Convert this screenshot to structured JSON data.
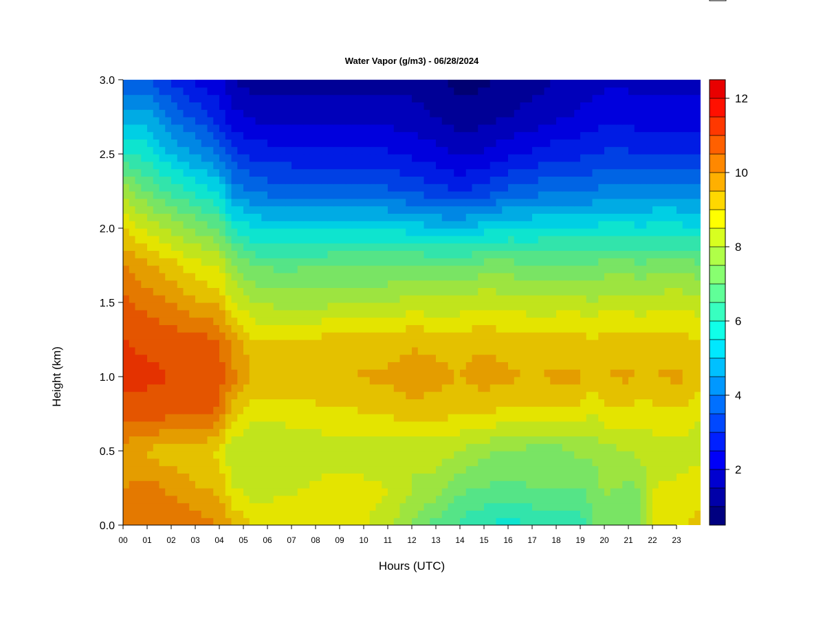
{
  "chart_data": {
    "type": "heatmap",
    "title": "Water Vapor (g/m3) - 06/28/2024",
    "xlabel": "Hours (UTC)",
    "ylabel": "Height (km)",
    "x_ticks": [
      "00",
      "01",
      "02",
      "03",
      "04",
      "05",
      "06",
      "07",
      "08",
      "09",
      "10",
      "11",
      "12",
      "13",
      "14",
      "15",
      "16",
      "17",
      "18",
      "19",
      "20",
      "21",
      "22",
      "23"
    ],
    "y_ticks": [
      "0.0",
      "0.5",
      "1.0",
      "1.5",
      "2.0",
      "2.5",
      "3.0"
    ],
    "xlim": [
      0,
      24
    ],
    "ylim": [
      0,
      3
    ],
    "colorbar": {
      "range": [
        0.5,
        12.5
      ],
      "levels": 24,
      "tick_labels": [
        "2",
        "4",
        "6",
        "8",
        "10",
        "12"
      ],
      "tick_values": [
        2,
        4,
        6,
        8,
        10,
        12
      ],
      "colors": [
        "#000080",
        "#0000a8",
        "#0000d0",
        "#0000f8",
        "#0020ff",
        "#0048ff",
        "#0070ff",
        "#0098ff",
        "#00c0ff",
        "#00e8ff",
        "#10ffe8",
        "#38ffc0",
        "#60ff98",
        "#88ff70",
        "#b0ff48",
        "#d8ff20",
        "#ffff00",
        "#ffd800",
        "#ffb000",
        "#ff8800",
        "#ff6000",
        "#ff3800",
        "#ff1000",
        "#e80000"
      ]
    },
    "time_hours": [
      0,
      1,
      2,
      3,
      4,
      4.5,
      5.5,
      7,
      9,
      11,
      12,
      13,
      14,
      15,
      16,
      17,
      18,
      19,
      19.5,
      20,
      21,
      21.5,
      22,
      23,
      23.5,
      24
    ],
    "height_km": [
      0,
      0.25,
      0.5,
      0.75,
      1.0,
      1.25,
      1.5,
      1.75,
      2.0,
      2.25,
      2.5,
      2.75,
      3.0
    ],
    "values": [
      [
        10.0,
        10.4,
        10.5,
        10.3,
        10.0,
        9.5,
        9.0,
        9.0,
        8.8,
        8.3,
        7.4,
        6.8,
        6.4,
        6.0,
        5.8,
        6.0,
        6.0,
        6.1,
        7.0,
        7.0,
        7.1,
        7.2,
        8.6,
        8.8,
        9.0,
        9.2
      ],
      [
        10.0,
        10.2,
        9.9,
        9.5,
        9.4,
        8.6,
        8.2,
        8.4,
        8.8,
        8.5,
        8.0,
        7.8,
        7.1,
        7.0,
        6.8,
        7.0,
        7.0,
        7.0,
        7.2,
        7.6,
        7.4,
        7.5,
        8.5,
        8.6,
        8.8,
        8.8
      ],
      [
        9.8,
        9.4,
        9.2,
        9.2,
        8.9,
        8.0,
        8.0,
        8.1,
        8.2,
        8.0,
        8.0,
        8.2,
        8.0,
        7.6,
        7.5,
        7.3,
        7.3,
        7.6,
        7.6,
        7.8,
        8.0,
        8.1,
        8.2,
        8.2,
        8.2,
        8.2
      ],
      [
        10.8,
        10.8,
        10.6,
        10.6,
        10.4,
        9.3,
        8.6,
        8.7,
        8.9,
        9.0,
        9.3,
        9.2,
        9.0,
        9.0,
        8.8,
        8.9,
        8.8,
        8.8,
        8.5,
        8.8,
        8.8,
        8.7,
        8.8,
        8.9,
        8.8,
        8.5
      ],
      [
        11.2,
        11.1,
        11.0,
        10.9,
        10.8,
        10.2,
        9.4,
        9.4,
        9.5,
        9.6,
        9.8,
        9.7,
        9.5,
        9.8,
        9.6,
        9.5,
        9.6,
        9.6,
        9.2,
        9.5,
        9.6,
        9.4,
        9.5,
        9.6,
        9.5,
        9.2
      ],
      [
        11.0,
        10.9,
        10.8,
        10.7,
        10.5,
        9.8,
        9.0,
        9.0,
        9.2,
        9.2,
        9.4,
        9.3,
        9.2,
        9.4,
        9.2,
        9.1,
        9.2,
        9.2,
        9.0,
        9.2,
        9.2,
        9.1,
        9.2,
        9.2,
        9.1,
        9.0
      ],
      [
        10.6,
        10.3,
        10.0,
        9.6,
        9.4,
        8.6,
        8.0,
        7.8,
        7.9,
        8.0,
        8.2,
        8.1,
        8.2,
        8.4,
        8.3,
        8.2,
        8.2,
        8.2,
        8.0,
        8.3,
        8.3,
        8.2,
        8.3,
        8.4,
        8.3,
        8.2
      ],
      [
        10.0,
        9.6,
        9.2,
        8.7,
        8.4,
        7.6,
        6.9,
        6.9,
        7.0,
        7.0,
        7.1,
        7.0,
        7.0,
        7.2,
        7.2,
        7.1,
        7.1,
        7.1,
        7.0,
        7.2,
        7.2,
        7.1,
        7.2,
        7.2,
        7.2,
        7.1
      ],
      [
        9.0,
        8.4,
        7.9,
        7.4,
        7.0,
        6.0,
        5.5,
        5.4,
        5.4,
        5.4,
        5.3,
        5.1,
        5.0,
        5.3,
        5.5,
        5.5,
        5.6,
        5.6,
        5.6,
        5.7,
        5.7,
        5.6,
        5.7,
        5.7,
        5.6,
        5.6
      ],
      [
        7.8,
        7.0,
        6.4,
        5.9,
        5.4,
        4.4,
        3.9,
        3.7,
        3.7,
        3.6,
        3.4,
        3.2,
        3.0,
        3.2,
        3.6,
        3.8,
        4.0,
        4.0,
        4.0,
        4.2,
        4.3,
        4.3,
        4.3,
        4.3,
        4.2,
        4.2
      ],
      [
        6.2,
        5.8,
        5.0,
        4.5,
        4.0,
        3.2,
        2.8,
        2.7,
        2.6,
        2.6,
        2.4,
        2.2,
        1.9,
        2.1,
        2.4,
        2.6,
        2.8,
        2.9,
        3.0,
        3.1,
        3.1,
        3.0,
        3.0,
        3.0,
        2.9,
        2.9
      ],
      [
        4.6,
        4.8,
        3.9,
        3.4,
        2.8,
        2.2,
        1.9,
        1.8,
        1.8,
        1.8,
        1.7,
        1.5,
        1.2,
        1.3,
        1.5,
        1.7,
        1.9,
        2.1,
        2.2,
        2.3,
        2.3,
        2.2,
        2.2,
        2.2,
        2.2,
        2.2
      ],
      [
        3.4,
        3.6,
        2.9,
        2.4,
        2.1,
        1.5,
        1.2,
        1.2,
        1.2,
        1.3,
        1.3,
        1.1,
        0.8,
        0.9,
        1.1,
        1.3,
        1.5,
        1.7,
        1.8,
        1.9,
        1.9,
        1.8,
        1.8,
        1.9,
        1.8,
        1.8
      ]
    ]
  }
}
